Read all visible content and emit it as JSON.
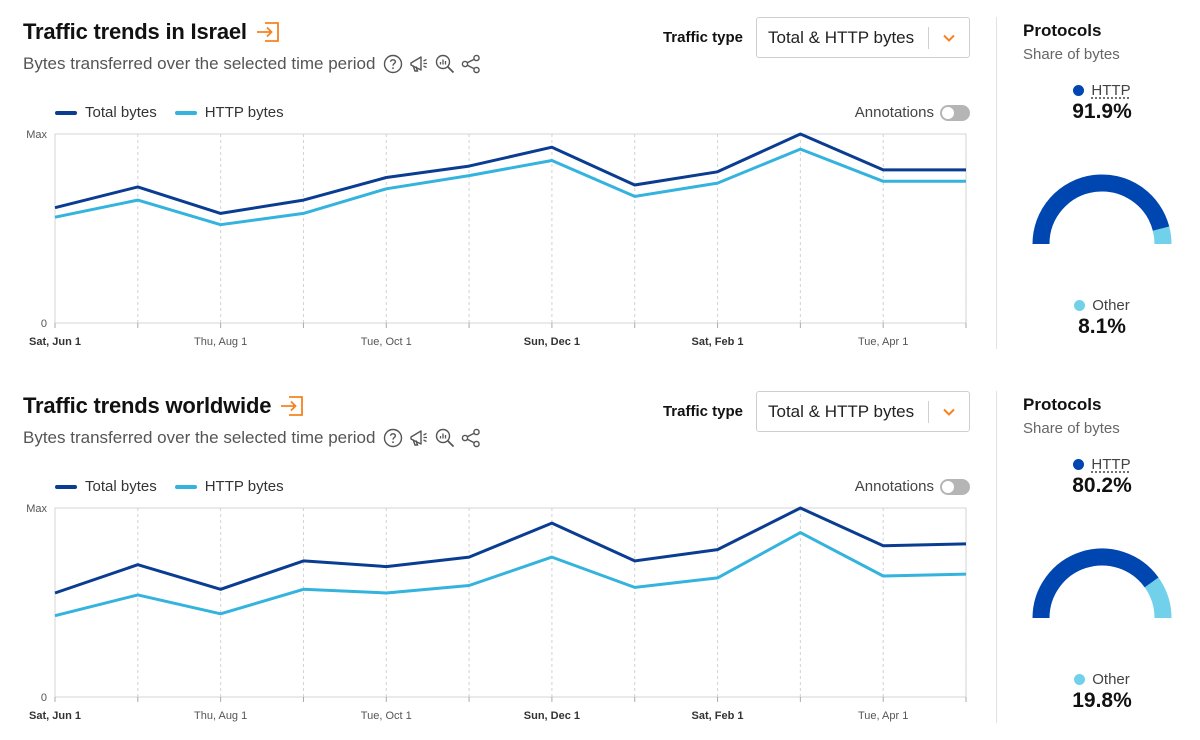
{
  "panels": [
    {
      "title": "Traffic trends in Israel",
      "subtitle": "Bytes transferred over the selected time period",
      "traffic_type_label": "Traffic type",
      "traffic_type_value": "Total & HTTP bytes",
      "annotations_label": "Annotations",
      "protocols_title": "Protocols",
      "protocols_subtitle": "Share of bytes",
      "http_label": "HTTP",
      "http_value": "91.9%",
      "other_label": "Other",
      "other_value": "8.1%"
    },
    {
      "title": "Traffic trends worldwide",
      "subtitle": "Bytes transferred over the selected time period",
      "traffic_type_label": "Traffic type",
      "traffic_type_value": "Total & HTTP bytes",
      "annotations_label": "Annotations",
      "protocols_title": "Protocols",
      "protocols_subtitle": "Share of bytes",
      "http_label": "HTTP",
      "http_value": "80.2%",
      "other_label": "Other",
      "other_value": "19.8%"
    }
  ],
  "colors": {
    "total": "#0a3d91",
    "http": "#33b3dd",
    "accent": "#f6821f",
    "gauge_http": "#0046b0",
    "gauge_other": "#72d1ea"
  },
  "icons": [
    "export-icon",
    "help-icon",
    "megaphone-icon",
    "zoom-chart-icon",
    "share-icon",
    "chevron-down-icon"
  ],
  "chart_data": [
    {
      "type": "line",
      "x": [
        "Sat, Jun 1",
        "",
        "Thu, Aug 1",
        "",
        "Tue, Oct 1",
        "",
        "Sun, Dec 1",
        "",
        "Sat, Feb 1",
        "",
        "Tue, Apr 1",
        ""
      ],
      "bold_ticks": [
        "Sat, Jun 1",
        "Sun, Dec 1",
        "Sat, Feb 1"
      ],
      "y_tick_labels": [
        "0",
        "Max"
      ],
      "ylim": [
        0,
        1
      ],
      "series": [
        {
          "name": "Total bytes",
          "values": [
            0.61,
            0.72,
            0.58,
            0.65,
            0.77,
            0.83,
            0.93,
            0.73,
            0.8,
            1.0,
            0.81,
            0.81
          ]
        },
        {
          "name": "HTTP bytes",
          "values": [
            0.56,
            0.65,
            0.52,
            0.58,
            0.71,
            0.78,
            0.86,
            0.67,
            0.74,
            0.92,
            0.75,
            0.75
          ]
        }
      ],
      "legend": "top-left",
      "grid": "vertical-dashed"
    },
    {
      "type": "line",
      "x": [
        "Sat, Jun 1",
        "",
        "Thu, Aug 1",
        "",
        "Tue, Oct 1",
        "",
        "Sun, Dec 1",
        "",
        "Sat, Feb 1",
        "",
        "Tue, Apr 1",
        ""
      ],
      "bold_ticks": [
        "Sat, Jun 1",
        "Sun, Dec 1",
        "Sat, Feb 1"
      ],
      "y_tick_labels": [
        "0",
        "Max"
      ],
      "ylim": [
        0,
        1
      ],
      "series": [
        {
          "name": "Total bytes",
          "values": [
            0.55,
            0.7,
            0.57,
            0.72,
            0.69,
            0.74,
            0.92,
            0.72,
            0.78,
            1.0,
            0.8,
            0.81
          ]
        },
        {
          "name": "HTTP bytes",
          "values": [
            0.43,
            0.54,
            0.44,
            0.57,
            0.55,
            0.59,
            0.74,
            0.58,
            0.63,
            0.87,
            0.64,
            0.65
          ]
        }
      ],
      "legend": "top-left",
      "grid": "vertical-dashed"
    }
  ]
}
